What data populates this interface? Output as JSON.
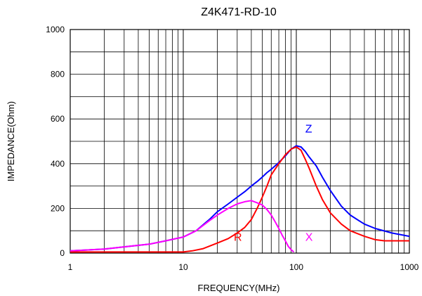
{
  "chart_data": {
    "type": "line",
    "title": "Z4K471-RD-10",
    "xlabel": "FREQUENCY(MHz)",
    "ylabel": "IMPEDANCE(Ohm)",
    "x_scale": "log",
    "xlim": [
      1,
      1000
    ],
    "ylim": [
      0,
      1000
    ],
    "x_ticks": [
      1,
      10,
      100,
      1000
    ],
    "x_tick_labels": [
      "1",
      "10",
      "100",
      "1000"
    ],
    "y_ticks": [
      0,
      200,
      400,
      600,
      800,
      1000
    ],
    "y_tick_labels": [
      "0",
      "200",
      "400",
      "600",
      "800",
      "1000"
    ],
    "grid": true,
    "series": [
      {
        "name": "Z",
        "color": "#0000ff",
        "x": [
          1,
          2,
          3,
          5,
          7,
          10,
          13,
          17,
          20,
          25,
          30,
          35,
          40,
          45,
          50,
          55,
          60,
          70,
          80,
          90,
          100,
          110,
          120,
          130,
          150,
          170,
          200,
          250,
          300,
          400,
          500,
          700,
          1000
        ],
        "y": [
          10,
          18,
          28,
          40,
          55,
          72,
          100,
          150,
          185,
          220,
          250,
          275,
          300,
          320,
          340,
          360,
          375,
          405,
          435,
          465,
          480,
          475,
          455,
          430,
          390,
          340,
          280,
          210,
          170,
          130,
          110,
          90,
          75
        ]
      },
      {
        "name": "R",
        "color": "#ff0000",
        "x": [
          1,
          2,
          5,
          10,
          12,
          15,
          20,
          25,
          30,
          35,
          40,
          45,
          50,
          55,
          60,
          70,
          80,
          90,
          100,
          110,
          120,
          130,
          150,
          170,
          200,
          250,
          300,
          400,
          500,
          600,
          700,
          1000
        ],
        "y": [
          5,
          5,
          5,
          5,
          10,
          20,
          45,
          65,
          90,
          115,
          150,
          200,
          250,
          300,
          350,
          400,
          440,
          465,
          475,
          460,
          420,
          380,
          300,
          240,
          180,
          130,
          100,
          75,
          60,
          55,
          55,
          55
        ]
      },
      {
        "name": "X",
        "color": "#ff00ff",
        "x": [
          1,
          2,
          3,
          5,
          7,
          10,
          13,
          17,
          20,
          25,
          30,
          35,
          40,
          45,
          50,
          55,
          60,
          65,
          70,
          75,
          80,
          85,
          90,
          95
        ],
        "y": [
          10,
          18,
          28,
          40,
          55,
          72,
          100,
          145,
          170,
          200,
          220,
          230,
          235,
          225,
          215,
          195,
          170,
          140,
          110,
          80,
          55,
          30,
          15,
          5
        ]
      }
    ],
    "series_labels": [
      {
        "text": "Z",
        "x": 120,
        "y": 540
      },
      {
        "text": "R",
        "x": 28,
        "y": 55
      },
      {
        "text": "X",
        "x": 120,
        "y": 55
      }
    ]
  }
}
